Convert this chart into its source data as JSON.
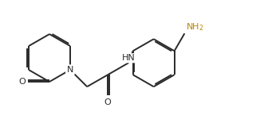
{
  "background": "#ffffff",
  "line_color": "#2a2a2a",
  "lw": 1.4,
  "dbo": 0.018,
  "fig_width": 3.31,
  "fig_height": 1.55,
  "dpi": 100,
  "xlim": [
    0.0,
    3.31
  ],
  "ylim": [
    0.0,
    1.55
  ]
}
